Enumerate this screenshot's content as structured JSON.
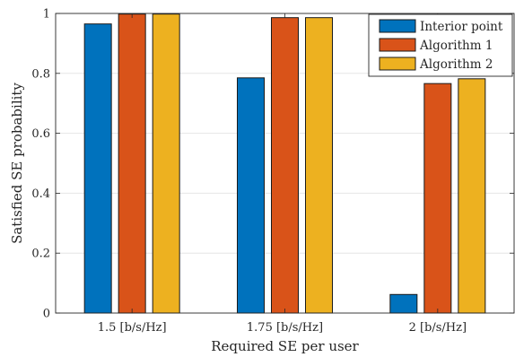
{
  "chart_data": {
    "type": "bar",
    "xlabel": "Required SE per user",
    "ylabel": "Satisfied SE probability",
    "categories": [
      "1.5 [b/s/Hz]",
      "1.75 [b/s/Hz]",
      "2 [b/s/Hz]"
    ],
    "ylim": [
      0,
      1
    ],
    "yticks": [
      "0",
      "0.2",
      "0.4",
      "0.6",
      "0.8",
      "1"
    ],
    "grid": "horizontal",
    "legend_position": "top-right",
    "series": [
      {
        "name": "Interior point",
        "color": "#0072BD",
        "values": [
          0.965,
          0.785,
          0.062
        ]
      },
      {
        "name": "Algorithm 1",
        "color": "#D95319",
        "values": [
          0.998,
          0.986,
          0.766
        ]
      },
      {
        "name": "Algorithm 2",
        "color": "#EDB120",
        "values": [
          0.998,
          0.986,
          0.782
        ]
      }
    ]
  }
}
